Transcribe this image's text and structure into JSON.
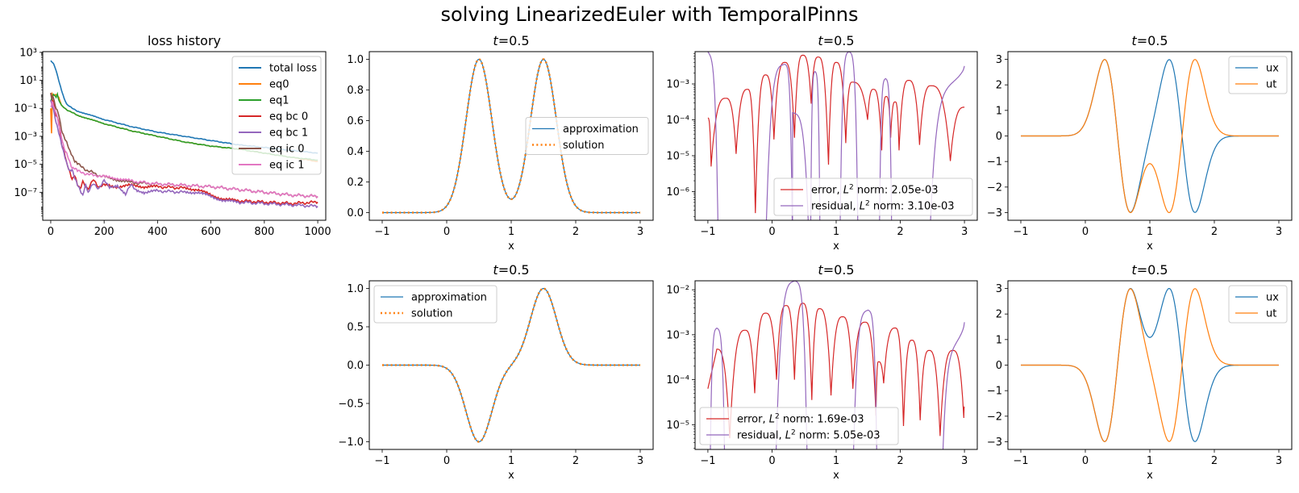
{
  "figure": {
    "suptitle": "solving LinearizedEuler with TemporalPinns",
    "colors": {
      "blue": "#1f77b4",
      "orange": "#ff7f0e",
      "green": "#2ca02c",
      "red": "#d62728",
      "purple": "#9467bd",
      "brown": "#8c564b",
      "pink": "#e377c2"
    }
  },
  "chart_data": [
    {
      "id": "loss",
      "type": "line",
      "title": "loss history",
      "xlabel": "",
      "ylabel": "",
      "yscale": "log",
      "xlim": [
        -30,
        1030
      ],
      "ylim_log10": [
        -9.0,
        3.05
      ],
      "xticks": [
        0,
        200,
        400,
        600,
        800,
        1000
      ],
      "yticks_log10": [
        3,
        1,
        -1,
        -3,
        -5,
        -7
      ],
      "ytick_labels": [
        "10³",
        "10¹",
        "10⁻¹",
        "10⁻³",
        "10⁻⁵",
        "10⁻⁷"
      ],
      "legend": {
        "position": "upper right"
      },
      "series": [
        {
          "name": "total loss",
          "color": "#1f77b4",
          "x": [
            0,
            10,
            20,
            30,
            40,
            50,
            60,
            80,
            100,
            150,
            200,
            300,
            400,
            500,
            600,
            700,
            800,
            900,
            1000
          ],
          "log10y": [
            2.4,
            2.2,
            1.7,
            1.0,
            0.3,
            -0.3,
            -0.7,
            -1.0,
            -1.2,
            -1.5,
            -1.8,
            -2.3,
            -2.7,
            -3.0,
            -3.3,
            -3.6,
            -3.8,
            -4.0,
            -4.2
          ]
        },
        {
          "name": "eq0",
          "color": "#ff7f0e",
          "x": [
            0,
            3,
            6,
            10,
            20,
            30,
            40,
            60,
            80,
            100,
            150,
            200,
            300,
            400,
            500,
            600,
            700,
            800,
            900,
            1000
          ],
          "log10y": [
            -1.0,
            -2.8,
            0.0,
            -0.1,
            0.0,
            -0.2,
            -0.8,
            -1.1,
            -1.3,
            -1.5,
            -1.8,
            -2.1,
            -2.6,
            -3.0,
            -3.4,
            -3.7,
            -3.9,
            -4.2,
            -4.5,
            -4.8
          ]
        },
        {
          "name": "eq1",
          "color": "#2ca02c",
          "x": [
            0,
            10,
            20,
            25,
            30,
            40,
            60,
            80,
            100,
            150,
            200,
            300,
            400,
            500,
            600,
            700,
            800,
            900,
            1000
          ],
          "log10y": [
            -0.5,
            0.0,
            -0.2,
            0.0,
            -0.4,
            -0.8,
            -1.1,
            -1.3,
            -1.5,
            -1.8,
            -2.1,
            -2.6,
            -3.0,
            -3.4,
            -3.7,
            -3.9,
            -4.2,
            -4.5,
            -4.7
          ]
        },
        {
          "name": "eq bc 0",
          "color": "#d62728",
          "x": [
            0,
            10,
            20,
            30,
            40,
            50,
            60,
            70,
            80,
            90,
            100,
            110,
            120,
            140,
            160,
            180,
            200,
            250,
            300,
            350,
            400,
            500,
            550,
            600,
            650,
            700,
            800,
            900,
            1000
          ],
          "log10y": [
            0.0,
            -0.5,
            -1.5,
            -2.0,
            -3.5,
            -4.0,
            -5.0,
            -5.5,
            -6.0,
            -5.8,
            -6.5,
            -6.7,
            -6.2,
            -6.8,
            -6.1,
            -6.6,
            -6.5,
            -6.6,
            -6.5,
            -6.6,
            -6.6,
            -6.7,
            -6.8,
            -7.2,
            -7.5,
            -7.6,
            -7.7,
            -7.8,
            -7.7
          ]
        },
        {
          "name": "eq bc 1",
          "color": "#9467bd",
          "x": [
            0,
            10,
            20,
            30,
            40,
            50,
            60,
            70,
            80,
            90,
            100,
            110,
            120,
            130,
            140,
            160,
            180,
            200,
            220,
            250,
            280,
            300,
            320,
            350,
            400,
            500,
            550,
            600,
            650,
            700,
            800,
            900,
            1000
          ],
          "log10y": [
            -0.5,
            -1.0,
            -2.0,
            -2.8,
            -3.5,
            -4.2,
            -5.0,
            -5.5,
            -5.3,
            -6.0,
            -6.5,
            -6.8,
            -7.2,
            -6.5,
            -7.0,
            -6.4,
            -6.7,
            -6.2,
            -6.6,
            -6.5,
            -7.1,
            -6.5,
            -6.8,
            -7.0,
            -6.9,
            -7.0,
            -7.0,
            -7.3,
            -7.6,
            -7.7,
            -7.8,
            -7.9,
            -8.0
          ]
        },
        {
          "name": "eq ic 0",
          "color": "#8c564b",
          "x": [
            0,
            5,
            10,
            20,
            30,
            40,
            50,
            60,
            70,
            80,
            90,
            100,
            120,
            140,
            160,
            180,
            200,
            250,
            300,
            400,
            500,
            600,
            700,
            800,
            900,
            1000
          ],
          "log10y": [
            0.0,
            -0.3,
            -0.2,
            -1.0,
            -1.5,
            -2.5,
            -3.0,
            -3.5,
            -4.0,
            -4.3,
            -4.8,
            -5.0,
            -5.2,
            -5.5,
            -5.6,
            -5.8,
            -5.9,
            -6.1,
            -6.3,
            -6.4,
            -6.5,
            -6.6,
            -6.8,
            -7.0,
            -7.2,
            -7.3
          ]
        },
        {
          "name": "eq ic 1",
          "color": "#e377c2",
          "x": [
            0,
            5,
            10,
            20,
            30,
            40,
            50,
            60,
            70,
            80,
            90,
            100,
            120,
            140,
            160,
            180,
            200,
            250,
            300,
            400,
            500,
            600,
            700,
            800,
            900,
            1000
          ],
          "log10y": [
            -1.0,
            -0.5,
            -0.8,
            -1.3,
            -2.2,
            -3.0,
            -3.8,
            -4.3,
            -4.8,
            -5.2,
            -5.3,
            -5.5,
            -5.6,
            -5.7,
            -5.8,
            -5.8,
            -5.9,
            -6.0,
            -6.2,
            -6.4,
            -6.5,
            -6.6,
            -6.8,
            -7.0,
            -7.2,
            -7.3
          ]
        }
      ]
    },
    {
      "id": "u1",
      "type": "line",
      "title": "t=0.5",
      "xlabel": "x",
      "xlim": [
        -1.2,
        3.2
      ],
      "ylim": [
        -0.05,
        1.05
      ],
      "xticks": [
        -1,
        0,
        1,
        2,
        3
      ],
      "xtick_labels": [
        "−1",
        "0",
        "1",
        "2",
        "3"
      ],
      "yticks": [
        0.0,
        0.2,
        0.4,
        0.6,
        0.8,
        1.0
      ],
      "ytick_labels": [
        "0.0",
        "0.2",
        "0.4",
        "0.6",
        "0.8",
        "1.0"
      ],
      "legend": {
        "position": "center right"
      },
      "function": "gauss_sum_pos",
      "series": [
        {
          "name": "approximation",
          "color": "#1f77b4",
          "style": "solid"
        },
        {
          "name": "solution",
          "color": "#ff7f0e",
          "style": "dotted"
        }
      ]
    },
    {
      "id": "err1",
      "type": "line",
      "title": "t=0.5",
      "xlabel": "x",
      "yscale": "log",
      "xlim": [
        -1.2,
        3.2
      ],
      "ylim_log10": [
        -6.8,
        -2.1
      ],
      "xticks": [
        -1,
        0,
        1,
        2,
        3
      ],
      "xtick_labels": [
        "−1",
        "0",
        "1",
        "2",
        "3"
      ],
      "yticks_log10": [
        -3,
        -4,
        -5,
        -6
      ],
      "ytick_labels": [
        "10⁻³",
        "10⁻⁴",
        "10⁻⁵",
        "10⁻⁶"
      ],
      "legend": {
        "position": "lower right"
      },
      "series": [
        {
          "name": "error, L² norm: 2.05e-03",
          "legend_prefix": "error, ",
          "legend_norm": "2.05e-03",
          "color": "#d62728",
          "peaks_x": [
            -1.0,
            -0.72,
            -0.38,
            -0.1,
            0.2,
            0.48,
            0.72,
            1.0,
            1.25,
            1.58,
            1.78,
            1.92,
            2.13,
            2.48,
            3.0
          ],
          "peaks_log10": [
            -3.95,
            -3.4,
            -3.15,
            -2.75,
            -2.4,
            -2.2,
            -2.25,
            -2.4,
            -2.95,
            -3.15,
            -3.35,
            -3.5,
            -2.9,
            -3.05,
            -3.65
          ],
          "dips_x": [
            -0.95,
            -0.56,
            -0.26,
            0.03,
            0.35,
            0.61,
            0.88,
            1.15,
            1.49,
            1.71,
            1.85,
            1.98,
            2.3,
            2.78
          ],
          "dips_log10": [
            -5.3,
            -4.95,
            -6.6,
            -4.55,
            -4.5,
            -3.55,
            -5.25,
            -4.65,
            -4.0,
            -4.85,
            -4.5,
            -4.85,
            -4.7,
            -5.15
          ]
        },
        {
          "name": "residual, L² norm: 3.10e-03",
          "legend_prefix": "residual, ",
          "legend_norm": "3.10e-03",
          "color": "#9467bd",
          "segments": [
            {
              "x0": -1.0,
              "x1": -0.83,
              "peak_x": -1.0,
              "peak_log10": -2.1
            },
            {
              "x0": -0.1,
              "x1": 0.32,
              "peak_x": 0.2,
              "peak_log10": -2.45
            },
            {
              "x0": 0.32,
              "x1": 0.6,
              "peak_x": 0.32,
              "peak_log10": -3.8
            },
            {
              "x0": 0.6,
              "x1": 0.75,
              "peak_x": 0.67,
              "peak_log10": -2.65
            },
            {
              "x0": 1.06,
              "x1": 1.34,
              "peak_x": 1.2,
              "peak_log10": -2.1
            },
            {
              "x0": 1.67,
              "x1": 1.87,
              "peak_x": 1.77,
              "peak_log10": -2.85
            },
            {
              "x0": 2.42,
              "x1": 3.0,
              "peak_x": 3.0,
              "peak_log10": -2.5
            }
          ]
        }
      ]
    },
    {
      "id": "d1",
      "type": "line",
      "title": "t=0.5",
      "xlabel": "x",
      "xlim": [
        -1.2,
        3.2
      ],
      "ylim": [
        -3.3,
        3.3
      ],
      "xticks": [
        -1,
        0,
        1,
        2,
        3
      ],
      "xtick_labels": [
        "−1",
        "0",
        "1",
        "2",
        "3"
      ],
      "yticks": [
        -3,
        -2,
        -1,
        0,
        1,
        2,
        3
      ],
      "ytick_labels": [
        "−3",
        "−2",
        "−1",
        "0",
        "1",
        "2",
        "3"
      ],
      "legend": {
        "position": "upper right"
      },
      "function": "deriv_pos",
      "series": [
        {
          "name": "ux",
          "color": "#1f77b4"
        },
        {
          "name": "ut",
          "color": "#ff7f0e"
        }
      ]
    },
    {
      "id": "u2",
      "type": "line",
      "title": "t=0.5",
      "xlabel": "x",
      "xlim": [
        -1.2,
        3.2
      ],
      "ylim": [
        -1.1,
        1.1
      ],
      "xticks": [
        -1,
        0,
        1,
        2,
        3
      ],
      "xtick_labels": [
        "−1",
        "0",
        "1",
        "2",
        "3"
      ],
      "yticks": [
        -1.0,
        -0.5,
        0.0,
        0.5,
        1.0
      ],
      "ytick_labels": [
        "−1.0",
        "−0.5",
        "0.0",
        "0.5",
        "1.0"
      ],
      "legend": {
        "position": "upper left"
      },
      "function": "gauss_diff",
      "series": [
        {
          "name": "approximation",
          "color": "#1f77b4",
          "style": "solid"
        },
        {
          "name": "solution",
          "color": "#ff7f0e",
          "style": "dotted"
        }
      ]
    },
    {
      "id": "err2",
      "type": "line",
      "title": "t=0.5",
      "xlabel": "x",
      "yscale": "log",
      "xlim": [
        -1.2,
        3.2
      ],
      "ylim_log10": [
        -5.55,
        -1.8
      ],
      "xticks": [
        -1,
        0,
        1,
        2,
        3
      ],
      "xtick_labels": [
        "−1",
        "0",
        "1",
        "2",
        "3"
      ],
      "yticks_log10": [
        -2,
        -3,
        -4,
        -5
      ],
      "ytick_labels": [
        "10⁻²",
        "10⁻³",
        "10⁻⁴",
        "10⁻⁵"
      ],
      "legend": {
        "position": "lower left"
      },
      "series": [
        {
          "name": "error, L² norm: 1.69e-03",
          "legend_prefix": "error, ",
          "legend_norm": "1.69e-03",
          "color": "#d62728",
          "peaks_x": [
            -1.0,
            -0.86,
            -0.42,
            -0.1,
            0.22,
            0.48,
            0.74,
            1.1,
            1.45,
            1.66,
            1.92,
            2.18,
            2.45,
            2.82,
            3.0
          ],
          "peaks_log10": [
            -4.2,
            -3.32,
            -2.9,
            -2.52,
            -2.35,
            -2.3,
            -2.42,
            -2.6,
            -2.72,
            -3.6,
            -2.85,
            -3.12,
            -3.35,
            -3.35,
            -4.6
          ],
          "dips_x": [
            -0.66,
            -0.27,
            0.07,
            0.35,
            0.62,
            0.92,
            1.26,
            1.62,
            1.74,
            2.05,
            2.31,
            2.62,
            2.99
          ],
          "dips_log10": [
            -5.3,
            -4.3,
            -4.0,
            -4.0,
            -4.45,
            -4.35,
            -4.2,
            -4.8,
            -4.08,
            -5.03,
            -4.9,
            -5.25,
            -4.85
          ]
        },
        {
          "name": "residual, L² norm: 5.05e-03",
          "legend_prefix": "residual, ",
          "legend_norm": "5.05e-03",
          "color": "#9467bd",
          "segments": [
            {
              "x0": -0.98,
              "x1": -0.72,
              "peak_x": -0.86,
              "peak_log10": -2.85
            },
            {
              "x0": 0.04,
              "x1": 0.56,
              "peak_x": 0.36,
              "peak_log10": -1.8
            },
            {
              "x0": 1.24,
              "x1": 1.65,
              "peak_x": 1.5,
              "peak_log10": -2.45
            },
            {
              "x0": 2.6,
              "x1": 3.0,
              "peak_x": 3.0,
              "peak_log10": -2.72
            }
          ]
        }
      ]
    },
    {
      "id": "d2",
      "type": "line",
      "title": "t=0.5",
      "xlabel": "x",
      "xlim": [
        -1.2,
        3.2
      ],
      "ylim": [
        -3.3,
        3.3
      ],
      "xticks": [
        -1,
        0,
        1,
        2,
        3
      ],
      "xtick_labels": [
        "−1",
        "0",
        "1",
        "2",
        "3"
      ],
      "yticks": [
        -3,
        -2,
        -1,
        0,
        1,
        2,
        3
      ],
      "ytick_labels": [
        "−3",
        "−2",
        "−1",
        "0",
        "1",
        "2",
        "3"
      ],
      "legend": {
        "position": "upper right"
      },
      "function": "deriv_diff",
      "series": [
        {
          "name": "ux",
          "color": "#1f77b4"
        },
        {
          "name": "ut",
          "color": "#ff7f0e"
        }
      ]
    }
  ]
}
